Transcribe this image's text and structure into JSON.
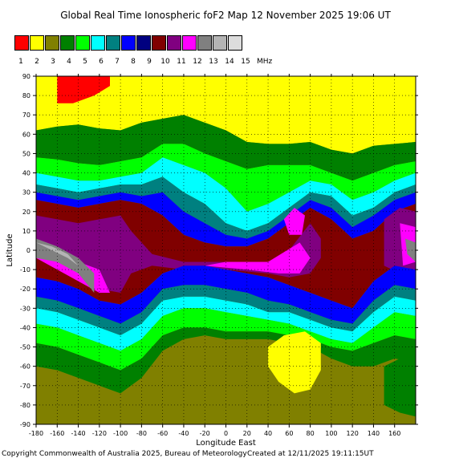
{
  "chart_data": {
    "type": "heatmap",
    "title": "Global Real Time Ionospheric foF2 Map  12 November 2025 19:06 UT",
    "xlabel": "Longitude East",
    "ylabel": "Latitude",
    "xlim": [
      -180,
      180
    ],
    "ylim": [
      -90,
      90
    ],
    "x_ticks": [
      -180,
      -160,
      -140,
      -120,
      -100,
      -80,
      -60,
      -40,
      -20,
      0,
      20,
      40,
      60,
      80,
      100,
      120,
      140,
      160
    ],
    "y_ticks": [
      90,
      80,
      70,
      60,
      50,
      40,
      30,
      20,
      10,
      0,
      -10,
      -20,
      -30,
      -40,
      -50,
      -60,
      -70,
      -80,
      -90
    ],
    "grid": true,
    "colorbar": {
      "levels": [
        "1",
        "2",
        "3",
        "4",
        "5",
        "6",
        "7",
        "8",
        "9",
        "10",
        "11",
        "12",
        "13",
        "14",
        "15"
      ],
      "unit": "MHz",
      "colors": [
        "#ff0000",
        "#ffff00",
        "#808000",
        "#008000",
        "#00ff00",
        "#00ffff",
        "#008080",
        "#0000ff",
        "#000080",
        "#800000",
        "#800080",
        "#ff00ff",
        "#808080",
        "#b4b4b4",
        "#dcdcdc"
      ]
    },
    "regions": [
      {
        "level": 3,
        "desc": "default background"
      },
      {
        "level": 2,
        "desc": "north polar yellow cap"
      },
      {
        "level": 1,
        "desc": "north red patch",
        "lon": [
          -160,
          -110
        ],
        "lat": [
          75,
          90
        ]
      },
      {
        "level": 4,
        "desc": "northern green band"
      },
      {
        "level": 5,
        "desc": "northern bright green band"
      },
      {
        "level": 6,
        "desc": "cyan band"
      },
      {
        "level": 7,
        "desc": "teal band"
      },
      {
        "level": 8,
        "desc": "blue band"
      },
      {
        "level": 10,
        "desc": "maroon equatorial anomaly"
      },
      {
        "level": 11,
        "desc": "purple core"
      },
      {
        "level": 12,
        "desc": "magenta core"
      },
      {
        "level": 13,
        "desc": "grey core"
      },
      {
        "level": 14,
        "desc": "light grey core"
      },
      {
        "level": 2,
        "desc": "southern yellow patch",
        "lon": [
          40,
          90
        ],
        "lat": [
          -75,
          -42
        ]
      }
    ]
  },
  "footer": {
    "copyright": "Copyright Commonwealth of Australia 2025, Bureau of Meteorology",
    "created": "Created at 12/11/2025 19:11:15UT"
  }
}
